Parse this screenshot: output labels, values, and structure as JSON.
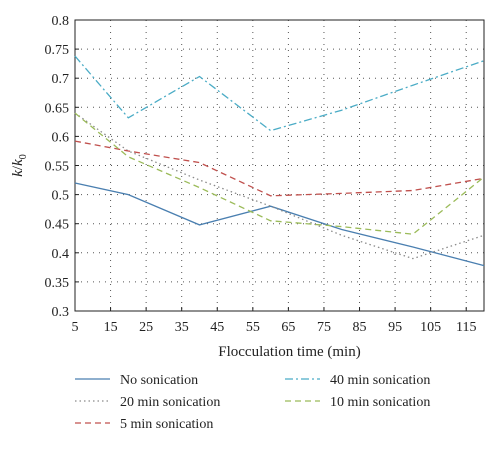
{
  "chart_data": {
    "type": "line",
    "title": "",
    "xlabel": "Flocculation time (min)",
    "ylabel_main": "k",
    "ylabel_den": "k",
    "ylabel_sub": "0",
    "xlim": [
      5,
      120
    ],
    "ylim": [
      0.3,
      0.8
    ],
    "x_ticks": [
      5,
      15,
      25,
      35,
      45,
      55,
      65,
      75,
      85,
      95,
      105,
      115
    ],
    "y_ticks": [
      0.3,
      0.35,
      0.4,
      0.45,
      0.5,
      0.55,
      0.6,
      0.65,
      0.7,
      0.75,
      0.8
    ],
    "y_tick_labels": [
      "0.3",
      "0.35",
      "0.4",
      "0.45",
      "0.5",
      "0.55",
      "0.6",
      "0.65",
      "0.7",
      "0.75",
      "0.8"
    ],
    "grid": true,
    "legend_position": "bottom",
    "series": [
      {
        "name": "No sonication",
        "color": "#4a7fb0",
        "dash": "solid",
        "x": [
          5,
          20,
          40,
          60,
          80,
          100,
          120
        ],
        "y": [
          0.52,
          0.5,
          0.448,
          0.48,
          0.44,
          0.41,
          0.378
        ]
      },
      {
        "name": "20 min sonication",
        "color": "#8a8a8a",
        "dash": "dotted",
        "x": [
          5,
          20,
          40,
          60,
          80,
          100,
          120
        ],
        "y": [
          0.64,
          0.575,
          0.525,
          0.48,
          0.43,
          0.39,
          0.43
        ]
      },
      {
        "name": "5 min sonication",
        "color": "#c0504d",
        "dash": "dashed",
        "x": [
          5,
          20,
          40,
          60,
          80,
          100,
          120
        ],
        "y": [
          0.592,
          0.575,
          0.555,
          0.498,
          0.502,
          0.507,
          0.528
        ]
      },
      {
        "name": "40 min sonication",
        "color": "#4bacc6",
        "dash": "dashdot",
        "x": [
          5,
          20,
          40,
          60,
          80,
          100,
          120
        ],
        "y": [
          0.738,
          0.632,
          0.703,
          0.61,
          0.645,
          0.688,
          0.73
        ]
      },
      {
        "name": "10 min sonication",
        "color": "#9bbb59",
        "dash": "dashed",
        "x": [
          5,
          20,
          40,
          60,
          80,
          100,
          120
        ],
        "y": [
          0.64,
          0.565,
          0.512,
          0.455,
          0.445,
          0.432,
          0.53
        ]
      }
    ],
    "legend_order": [
      0,
      3,
      1,
      4,
      2
    ]
  }
}
